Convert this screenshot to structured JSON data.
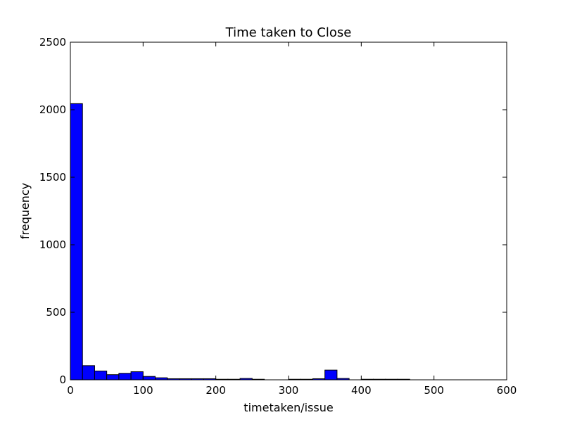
{
  "chart_data": {
    "type": "bar",
    "title": "Time taken to Close",
    "xlabel": "timetaken/issue",
    "ylabel": "frequency",
    "xlim": [
      0,
      600
    ],
    "ylim": [
      0,
      2500
    ],
    "xticks": [
      "0",
      "100",
      "200",
      "300",
      "400",
      "500",
      "600"
    ],
    "yticks": [
      "0",
      "500",
      "1000",
      "1500",
      "2000",
      "2500"
    ],
    "grid": false,
    "bin_width": 16.67,
    "bins": [
      {
        "x0": 0,
        "value": 2045
      },
      {
        "x0": 16.67,
        "value": 105
      },
      {
        "x0": 33.33,
        "value": 65
      },
      {
        "x0": 50,
        "value": 38
      },
      {
        "x0": 66.67,
        "value": 48
      },
      {
        "x0": 83.33,
        "value": 60
      },
      {
        "x0": 100,
        "value": 25
      },
      {
        "x0": 116.67,
        "value": 15
      },
      {
        "x0": 133.33,
        "value": 8
      },
      {
        "x0": 150,
        "value": 8
      },
      {
        "x0": 166.67,
        "value": 8
      },
      {
        "x0": 183.33,
        "value": 8
      },
      {
        "x0": 200,
        "value": 4
      },
      {
        "x0": 216.67,
        "value": 4
      },
      {
        "x0": 233.33,
        "value": 10
      },
      {
        "x0": 250,
        "value": 4
      },
      {
        "x0": 266.67,
        "value": 0
      },
      {
        "x0": 283.33,
        "value": 0
      },
      {
        "x0": 300,
        "value": 4
      },
      {
        "x0": 316.67,
        "value": 4
      },
      {
        "x0": 333.33,
        "value": 8
      },
      {
        "x0": 350,
        "value": 72
      },
      {
        "x0": 366.67,
        "value": 10
      },
      {
        "x0": 383.33,
        "value": 0
      },
      {
        "x0": 400,
        "value": 4
      },
      {
        "x0": 416.67,
        "value": 4
      },
      {
        "x0": 433.33,
        "value": 4
      },
      {
        "x0": 450,
        "value": 4
      },
      {
        "x0": 466.67,
        "value": 0
      },
      {
        "x0": 483.33,
        "value": 0
      },
      {
        "x0": 500,
        "value": 0
      },
      {
        "x0": 516.67,
        "value": 0
      },
      {
        "x0": 533.33,
        "value": 0
      },
      {
        "x0": 550,
        "value": 0
      },
      {
        "x0": 566.67,
        "value": 0
      },
      {
        "x0": 583.33,
        "value": 0
      }
    ],
    "bar_color": "#0000ff",
    "edge_color": "#000000"
  }
}
